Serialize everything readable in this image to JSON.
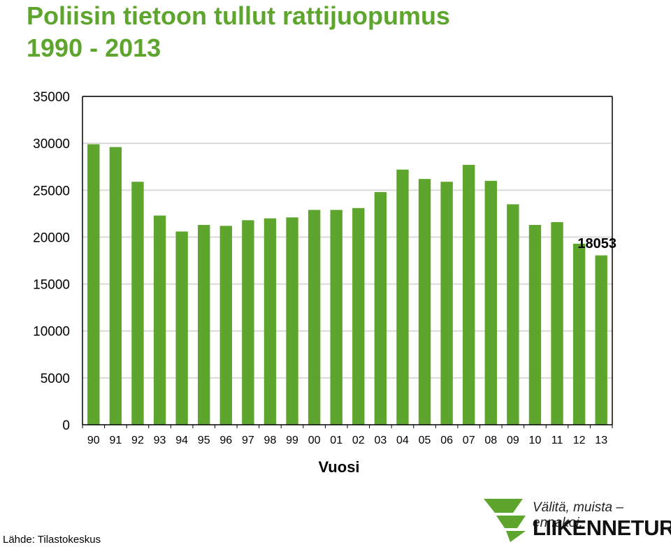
{
  "title_line1": "Poliisin tietoon tullut rattijuopumus",
  "title_line2": "1990 - 2013",
  "source": "Lähde: Tilastokeskus",
  "logo": {
    "slogan": "Välitä, muista – ennakoi.",
    "brand": "LIIKENNETURVA",
    "icon": "liikenneturva-triangle-logo",
    "color": "#5ea52d"
  },
  "chart_data": {
    "type": "bar",
    "xlabel": "Vuosi",
    "ylabel": "",
    "ylim": [
      0,
      35000
    ],
    "yticks": [
      0,
      5000,
      10000,
      15000,
      20000,
      25000,
      30000,
      35000
    ],
    "grid": true,
    "bar_color": "#5ea52d",
    "categories": [
      "90",
      "91",
      "92",
      "93",
      "94",
      "95",
      "96",
      "97",
      "98",
      "99",
      "00",
      "01",
      "02",
      "03",
      "04",
      "05",
      "06",
      "07",
      "08",
      "09",
      "10",
      "11",
      "12",
      "13"
    ],
    "values": [
      29900,
      29600,
      25900,
      22300,
      20600,
      21300,
      21200,
      21800,
      22000,
      22100,
      22900,
      22900,
      23100,
      24800,
      27200,
      26200,
      25900,
      27700,
      26000,
      23500,
      21300,
      21600,
      19300,
      18053
    ],
    "annotations": [
      {
        "category": "13",
        "text": "18053"
      }
    ]
  }
}
